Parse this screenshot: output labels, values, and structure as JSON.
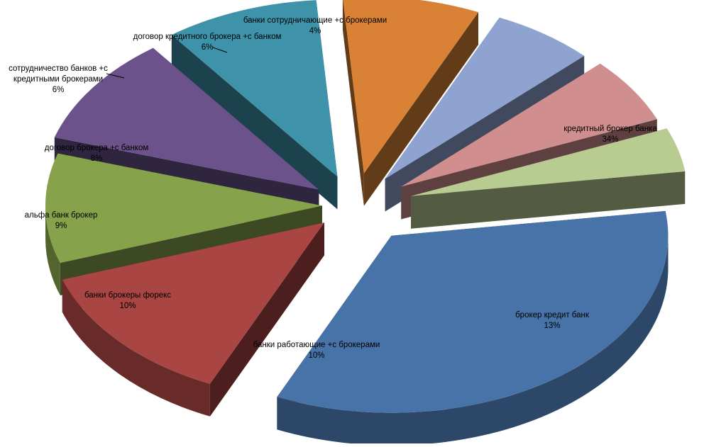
{
  "chart_data": {
    "type": "pie",
    "variant": "exploded-3d",
    "title": "",
    "legend": "none",
    "slices": [
      {
        "label": "кредитный брокер банка",
        "percent_label": "34%",
        "value": 34,
        "color": "#4773a8"
      },
      {
        "label": "брокер кредит банк",
        "percent_label": "13%",
        "value": 13,
        "color": "#a94543"
      },
      {
        "label": "банки работающие +с брокерами",
        "percent_label": "10%",
        "value": 10,
        "color": "#86a24b"
      },
      {
        "label": "банки брокеры форекс",
        "percent_label": "10%",
        "value": 10,
        "color": "#6b528b"
      },
      {
        "label": "альфа банк брокер",
        "percent_label": "9%",
        "value": 9,
        "color": "#3e93aa"
      },
      {
        "label": "договор брокера +с банком",
        "percent_label": "8%",
        "value": 8,
        "color": "#d98236"
      },
      {
        "label": "сотрудничество банков +с кредитными брокерами",
        "percent_label": "6%",
        "value": 6,
        "color": "#8ea3cf"
      },
      {
        "label": "договор кредитного брокера +с банком",
        "percent_label": "6%",
        "value": 6,
        "color": "#d08f8e"
      },
      {
        "label": "банки сотрудничающие +с брокерами",
        "percent_label": "4%",
        "value": 4,
        "color": "#b8cc92"
      }
    ]
  }
}
